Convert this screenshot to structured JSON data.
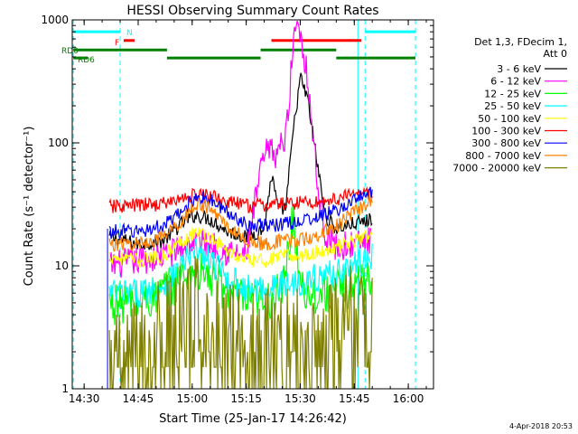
{
  "chart_data": {
    "type": "line",
    "title": "HESSI Observing Summary Count Rates",
    "xlabel": "Start Time (25-Jan-17 14:26:42)",
    "ylabel": "Count Rate (s⁻¹ detector⁻¹)",
    "yscale": "log",
    "xlim": [
      "14:26:42",
      "16:07:00"
    ],
    "ylim": [
      1,
      1000
    ],
    "x_ticks": [
      "14:30",
      "14:45",
      "15:00",
      "15:15",
      "15:30",
      "15:45",
      "16:00"
    ],
    "y_ticks": [
      "1",
      "10",
      "100",
      "1000"
    ],
    "legend_position": "right",
    "legend_header": [
      "Det 1,3, FDecim 1,",
      "Att 0"
    ],
    "series": [
      {
        "name": "3 - 6 keV",
        "color": "#000000",
        "x": [
          "14:37",
          "14:45",
          "14:52",
          "14:57",
          "15:01",
          "15:05",
          "15:10",
          "15:15",
          "15:20",
          "15:22",
          "15:24",
          "15:26",
          "15:28",
          "15:30",
          "15:32",
          "15:35",
          "15:37",
          "15:40",
          "15:45",
          "15:48",
          "15:50"
        ],
        "y": [
          17,
          15,
          16,
          22,
          26,
          24,
          19,
          17,
          20,
          55,
          28,
          30,
          120,
          340,
          230,
          60,
          25,
          20,
          22,
          23,
          24
        ]
      },
      {
        "name": "6 - 12 keV",
        "color": "#ff00ff",
        "x": [
          "14:37",
          "14:45",
          "14:52",
          "14:57",
          "15:01",
          "15:05",
          "15:10",
          "15:15",
          "15:19",
          "15:21",
          "15:23",
          "15:26",
          "15:28",
          "15:29",
          "15:30",
          "15:32",
          "15:35",
          "15:37",
          "15:40",
          "15:45",
          "15:50"
        ],
        "y": [
          10,
          11,
          12,
          14,
          16,
          15,
          13,
          12,
          60,
          90,
          80,
          110,
          600,
          1100,
          800,
          350,
          40,
          18,
          14,
          15,
          16
        ]
      },
      {
        "name": "12 - 25 keV",
        "color": "#00ff00",
        "x": [
          "14:37",
          "14:45",
          "14:52",
          "14:57",
          "15:01",
          "15:05",
          "15:10",
          "15:15",
          "15:20",
          "15:25",
          "15:28",
          "15:30",
          "15:32",
          "15:35",
          "15:40",
          "15:45",
          "15:50"
        ],
        "y": [
          5,
          5,
          6,
          8,
          9,
          8,
          6,
          5,
          5,
          6,
          25,
          8,
          6,
          6,
          6,
          7,
          8
        ]
      },
      {
        "name": "25 - 50 keV",
        "color": "#00ffff",
        "x": [
          "14:37",
          "14:45",
          "14:52",
          "14:57",
          "15:01",
          "15:05",
          "15:10",
          "15:15",
          "15:20",
          "15:25",
          "15:30",
          "15:35",
          "15:40",
          "15:45",
          "15:50"
        ],
        "y": [
          6,
          6,
          7,
          10,
          13,
          11,
          8,
          6.5,
          6.5,
          7,
          7.5,
          8,
          9,
          10,
          12
        ]
      },
      {
        "name": "50 - 100 keV",
        "color": "#ffff00",
        "x": [
          "14:37",
          "14:45",
          "14:52",
          "14:57",
          "15:01",
          "15:05",
          "15:10",
          "15:15",
          "15:20",
          "15:25",
          "15:30",
          "15:35",
          "15:40",
          "15:45",
          "15:50"
        ],
        "y": [
          12,
          11,
          12,
          16,
          19,
          17,
          13,
          11,
          11,
          12,
          12,
          13,
          14,
          16,
          18
        ]
      },
      {
        "name": "100 - 300 keV",
        "color": "#ff0000",
        "x": [
          "14:37",
          "14:45",
          "14:52",
          "14:57",
          "15:01",
          "15:05",
          "15:10",
          "15:15",
          "15:20",
          "15:25",
          "15:30",
          "15:35",
          "15:40",
          "15:45",
          "15:50"
        ],
        "y": [
          30,
          31,
          32,
          35,
          38,
          37,
          33,
          31,
          31,
          32,
          33,
          33,
          35,
          38,
          40
        ]
      },
      {
        "name": "300 - 800 keV",
        "color": "#0000ff",
        "x": [
          "14:37",
          "14:45",
          "14:52",
          "14:57",
          "15:01",
          "15:05",
          "15:10",
          "15:15",
          "15:20",
          "15:25",
          "15:30",
          "15:35",
          "15:40",
          "15:45",
          "15:50"
        ],
        "y": [
          19,
          19,
          21,
          27,
          37,
          34,
          27,
          22,
          21,
          22,
          23,
          25,
          28,
          34,
          40
        ]
      },
      {
        "name": "800 - 7000 keV",
        "color": "#ff8000",
        "x": [
          "14:37",
          "14:45",
          "14:52",
          "14:57",
          "15:01",
          "15:05",
          "15:10",
          "15:15",
          "15:20",
          "15:25",
          "15:30",
          "15:35",
          "15:40",
          "15:45",
          "15:50"
        ],
        "y": [
          15,
          15,
          17,
          23,
          32,
          29,
          21,
          16,
          15,
          16,
          16,
          18,
          21,
          27,
          35
        ]
      },
      {
        "name": "7000 - 20000 keV",
        "color": "#808000",
        "x": [
          "14:37",
          "14:42",
          "14:47",
          "14:52",
          "14:57",
          "15:01",
          "15:05",
          "15:10",
          "15:15",
          "15:20",
          "15:25",
          "15:30",
          "15:35",
          "15:40",
          "15:45",
          "15:50"
        ],
        "y": [
          1,
          1.5,
          2,
          2.5,
          3,
          3.5,
          3,
          2.5,
          2,
          2,
          2,
          2,
          2,
          2.5,
          3,
          3.5
        ]
      }
    ],
    "flag_labels": {
      "N": "N",
      "F": "F",
      "RD0": "RD0",
      "RD6": "RD6"
    },
    "flags": [
      {
        "label": "N",
        "color": "#00ffff",
        "y": 800,
        "intervals": [
          [
            "14:27",
            "14:40"
          ],
          [
            "15:48",
            "16:02"
          ]
        ]
      },
      {
        "label": "F",
        "color": "#ff0000",
        "y": 680,
        "intervals": [
          [
            "14:41",
            "14:44"
          ],
          [
            "15:22",
            "15:47"
          ]
        ]
      },
      {
        "label": "RD0",
        "color": "#008000",
        "y": 570,
        "intervals": [
          [
            "14:27",
            "14:53"
          ],
          [
            "15:19",
            "15:40"
          ]
        ]
      },
      {
        "label": "RD6",
        "color": "#008000",
        "y": 490,
        "intervals": [
          [
            "14:27",
            "14:31"
          ],
          [
            "14:53",
            "15:19"
          ],
          [
            "15:40",
            "16:02"
          ]
        ]
      }
    ],
    "dashed_lines": {
      "color": "#00ffff",
      "x": [
        "14:27",
        "14:40",
        "15:48",
        "16:02"
      ]
    },
    "solid_lines": {
      "color": "#00ffff",
      "x": [
        "15:46"
      ]
    },
    "data_gap": [
      "14:26:42",
      "14:36:30"
    ]
  },
  "timestamp": "4-Apr-2018 20:53"
}
